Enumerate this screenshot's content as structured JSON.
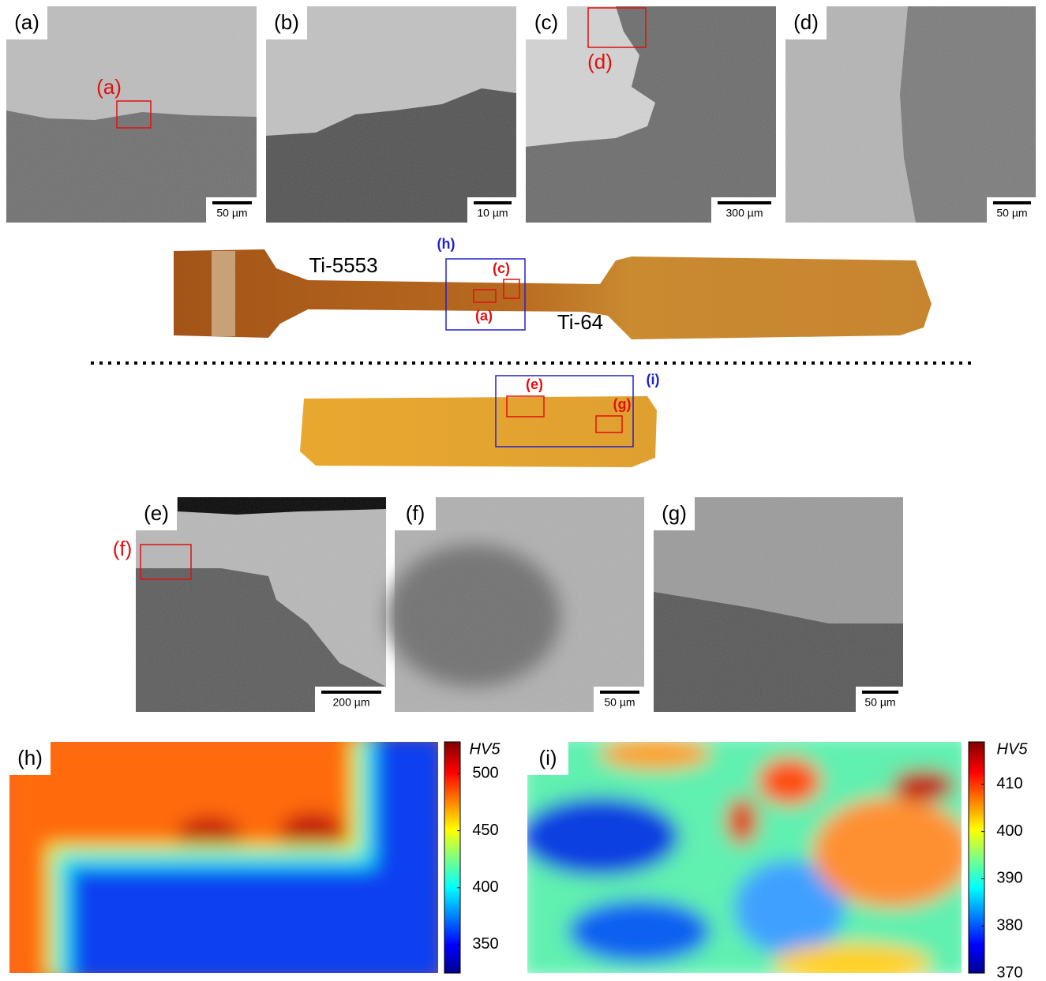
{
  "top_panels": [
    {
      "label": "(a)",
      "scale": "50 µm",
      "inset": "(a)"
    },
    {
      "label": "(b)",
      "scale": "10 µm"
    },
    {
      "label": "(c)",
      "scale": "300 µm",
      "inset": "(d)"
    },
    {
      "label": "(d)",
      "scale": "50 µm"
    }
  ],
  "specimen_1": {
    "left_material": "Ti-5553",
    "right_material": "Ti-64",
    "map_box": "(h)",
    "boxes": [
      "(c)",
      "(a)"
    ]
  },
  "specimen_2": {
    "map_box": "(i)",
    "boxes": [
      "(e)",
      "(g)"
    ]
  },
  "middle_panels": [
    {
      "label": "(e)",
      "scale": "200 µm",
      "inset": "(f)"
    },
    {
      "label": "(f)",
      "scale": "50 µm"
    },
    {
      "label": "(g)",
      "scale": "50 µm"
    }
  ],
  "maps": [
    {
      "label": "(h)",
      "colorbar_title": "HV5",
      "lim": [
        325,
        528
      ],
      "ticks": [
        350,
        400,
        450,
        500
      ]
    },
    {
      "label": "(i)",
      "colorbar_title": "HV5",
      "lim": [
        370,
        419
      ],
      "ticks": [
        370,
        380,
        390,
        400,
        410
      ]
    }
  ]
}
